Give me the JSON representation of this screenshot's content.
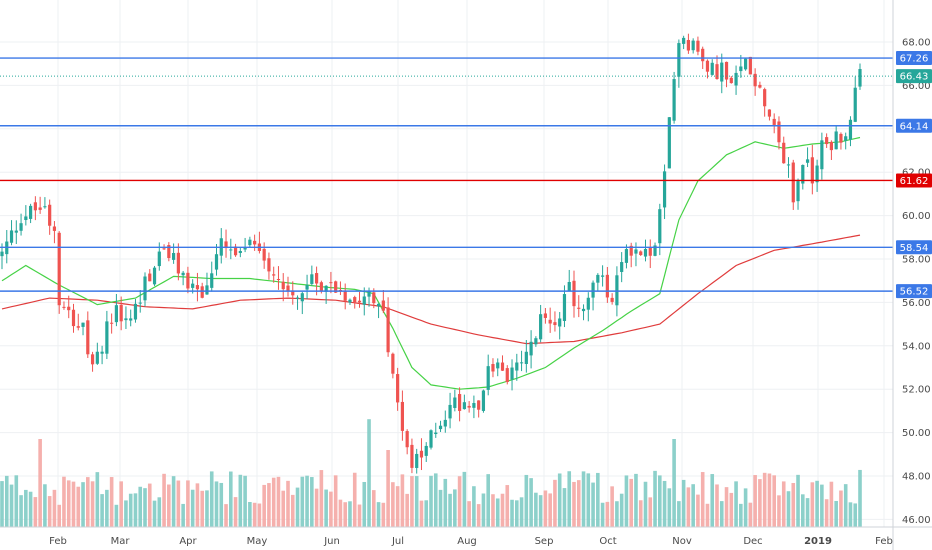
{
  "chart_data": {
    "type": "candlestick",
    "y_axis": {
      "ticks": [
        "46.00",
        "48.00",
        "50.00",
        "52.00",
        "54.00",
        "56.00",
        "58.00",
        "60.00",
        "62.00",
        "64.00",
        "66.00",
        "68.00"
      ],
      "range": [
        45.7,
        68.8
      ],
      "position": "right"
    },
    "x_axis": {
      "labels": [
        "Feb",
        "Mar",
        "Apr",
        "May",
        "Jun",
        "Jul",
        "Aug",
        "Sep",
        "Oct",
        "Nov",
        "Dec",
        "2019",
        "Feb"
      ]
    },
    "grid": true,
    "colors": {
      "up": "#26a69a",
      "down": "#ef5350",
      "up_volume": "#80cbc4",
      "down_volume": "#f4a7a4",
      "level_line": "#3b78e7",
      "key_level_line": "#e00000",
      "last_price": "#26a69a",
      "ma_fast": "#46d246",
      "ma_slow": "#e03c3c"
    },
    "horizontal_levels": [
      {
        "value": 67.26,
        "label": "67.26",
        "color": "#3b78e7"
      },
      {
        "value": 64.14,
        "label": "64.14",
        "color": "#3b78e7"
      },
      {
        "value": 61.62,
        "label": "61.62",
        "color": "#e00000"
      },
      {
        "value": 58.54,
        "label": "58.54",
        "color": "#3b78e7"
      },
      {
        "value": 56.52,
        "label": "56.52",
        "color": "#3b78e7"
      }
    ],
    "last_price": {
      "value": 66.43,
      "label": "66.43"
    },
    "price_path": [
      [
        0,
        58.2
      ],
      [
        4,
        60.0
      ],
      [
        9,
        60.4
      ],
      [
        11,
        59.4
      ],
      [
        12,
        56.3
      ],
      [
        17,
        54.7
      ],
      [
        19,
        52.7
      ],
      [
        23,
        55.5
      ],
      [
        27,
        55.2
      ],
      [
        30,
        56.9
      ],
      [
        34,
        58.5
      ],
      [
        38,
        57.2
      ],
      [
        42,
        56.3
      ],
      [
        46,
        58.6
      ],
      [
        50,
        58.0
      ],
      [
        53,
        58.9
      ],
      [
        57,
        57.4
      ],
      [
        61,
        56.3
      ],
      [
        66,
        57.0
      ],
      [
        70,
        56.7
      ],
      [
        74,
        56.2
      ],
      [
        77,
        56.8
      ],
      [
        80,
        55.6
      ],
      [
        82,
        52.3
      ],
      [
        84,
        50.5
      ],
      [
        86,
        48.4
      ],
      [
        88,
        48.8
      ],
      [
        91,
        50.3
      ],
      [
        95,
        51.4
      ],
      [
        100,
        51.5
      ],
      [
        103,
        53.2
      ],
      [
        106,
        52.5
      ],
      [
        110,
        53.4
      ],
      [
        113,
        55.1
      ],
      [
        116,
        55.3
      ],
      [
        119,
        56.5
      ],
      [
        122,
        55.5
      ],
      [
        125,
        57.3
      ],
      [
        128,
        56.0
      ],
      [
        131,
        58.6
      ],
      [
        135,
        58.2
      ],
      [
        137,
        58.5
      ],
      [
        139,
        61.7
      ],
      [
        140,
        64.3
      ],
      [
        142,
        68.3
      ],
      [
        145,
        67.9
      ],
      [
        148,
        66.6
      ],
      [
        151,
        66.8
      ],
      [
        153,
        65.8
      ],
      [
        156,
        67.2
      ],
      [
        159,
        65.9
      ],
      [
        162,
        64.2
      ],
      [
        165,
        62.0
      ],
      [
        166,
        60.8
      ],
      [
        168,
        62.6
      ],
      [
        170,
        61.8
      ],
      [
        172,
        63.3
      ],
      [
        175,
        63.5
      ],
      [
        177,
        63.8
      ],
      [
        178,
        64.7
      ],
      [
        180,
        66.4
      ]
    ],
    "ma_fast_path": [
      [
        0,
        57.0
      ],
      [
        5,
        57.7
      ],
      [
        12,
        56.8
      ],
      [
        20,
        55.9
      ],
      [
        28,
        56.2
      ],
      [
        36,
        57.2
      ],
      [
        44,
        57.1
      ],
      [
        52,
        57.1
      ],
      [
        60,
        56.9
      ],
      [
        68,
        56.7
      ],
      [
        74,
        56.6
      ],
      [
        78,
        56.4
      ],
      [
        82,
        54.8
      ],
      [
        86,
        53.0
      ],
      [
        90,
        52.2
      ],
      [
        96,
        52.0
      ],
      [
        102,
        52.1
      ],
      [
        108,
        52.5
      ],
      [
        114,
        53.0
      ],
      [
        120,
        53.9
      ],
      [
        126,
        54.7
      ],
      [
        132,
        55.6
      ],
      [
        138,
        56.4
      ],
      [
        142,
        59.8
      ],
      [
        146,
        61.6
      ],
      [
        152,
        62.8
      ],
      [
        158,
        63.4
      ],
      [
        164,
        63.1
      ],
      [
        170,
        63.3
      ],
      [
        176,
        63.4
      ],
      [
        180,
        63.6
      ]
    ],
    "ma_slow_path": [
      [
        0,
        55.7
      ],
      [
        10,
        56.2
      ],
      [
        20,
        56.1
      ],
      [
        30,
        55.8
      ],
      [
        40,
        55.7
      ],
      [
        50,
        56.1
      ],
      [
        60,
        56.2
      ],
      [
        70,
        56.1
      ],
      [
        80,
        55.8
      ],
      [
        90,
        55.0
      ],
      [
        100,
        54.5
      ],
      [
        110,
        54.1
      ],
      [
        120,
        54.2
      ],
      [
        130,
        54.6
      ],
      [
        138,
        55.0
      ],
      [
        146,
        56.4
      ],
      [
        154,
        57.7
      ],
      [
        162,
        58.4
      ],
      [
        170,
        58.7
      ],
      [
        180,
        59.1
      ]
    ],
    "notable_volume": [
      {
        "x": 8,
        "value": 4.0
      },
      {
        "x": 77,
        "value": 4.9
      },
      {
        "x": 81,
        "value": 3.5
      },
      {
        "x": 141,
        "value": 4.0
      },
      {
        "x": 166,
        "value": 2.0
      },
      {
        "x": 171,
        "value": 2.1
      }
    ]
  }
}
